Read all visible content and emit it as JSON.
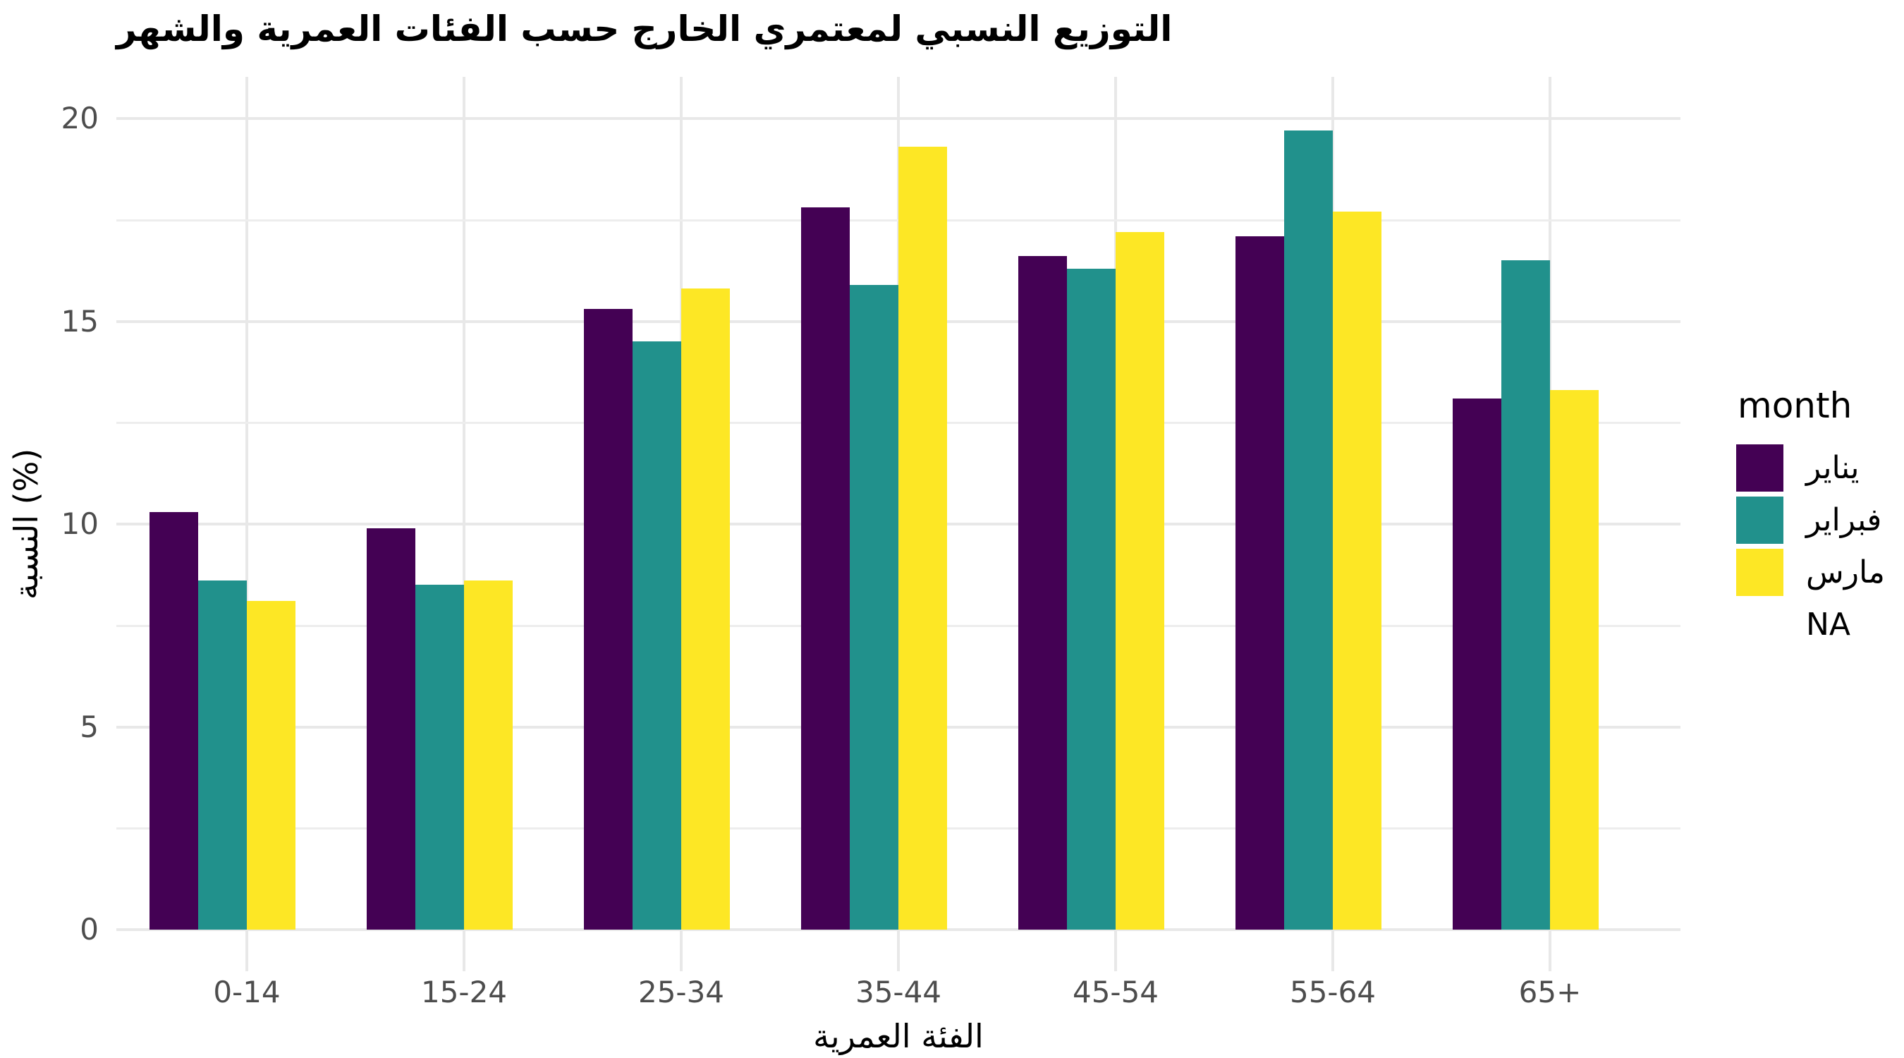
{
  "title": "التوزيع النسبي لمعتمري الخارج حسب الفئات العمرية والشهر",
  "legend": {
    "title": "month",
    "na_label": "NA"
  },
  "axes": {
    "x_title": "الفئة العمرية",
    "y_title": "النسبة (%)",
    "y_tick_labels": [
      "0",
      "5",
      "10",
      "15",
      "20"
    ]
  },
  "colors": {
    "january": "#440154",
    "february": "#21918C",
    "march": "#FDE725",
    "grid_major": "#E8E8E8",
    "grid_minor": "#EDEDED",
    "axis_text": "#4D4D4D",
    "background": "#FFFFFF"
  },
  "chart_data": {
    "type": "bar",
    "title": "التوزيع النسبي لمعتمري الخارج حسب الفئات العمرية والشهر",
    "xlabel": "الفئة العمرية",
    "ylabel": "النسبة (%)",
    "categories": [
      "0-14",
      "15-24",
      "25-34",
      "35-44",
      "45-54",
      "55-64",
      "65+"
    ],
    "series": [
      {
        "name": "يناير",
        "color": "#440154",
        "values": [
          10.3,
          9.9,
          15.3,
          17.8,
          16.6,
          17.1,
          13.1
        ]
      },
      {
        "name": "فبراير",
        "color": "#21918C",
        "values": [
          8.6,
          8.5,
          14.5,
          15.9,
          16.3,
          19.7,
          16.5
        ]
      },
      {
        "name": "مارس",
        "color": "#FDE725",
        "values": [
          8.1,
          8.6,
          15.8,
          19.3,
          17.2,
          17.7,
          13.3
        ]
      }
    ],
    "legend_title": "month",
    "legend_extra_entry": "NA",
    "legend_position": "right",
    "ylim": [
      0,
      20.7
    ],
    "yticks": [
      0,
      5,
      10,
      15,
      20
    ],
    "yticks_minor": [
      2.5,
      7.5,
      12.5,
      17.5
    ],
    "grid": "on",
    "vertical_grid_at_categories": true
  }
}
